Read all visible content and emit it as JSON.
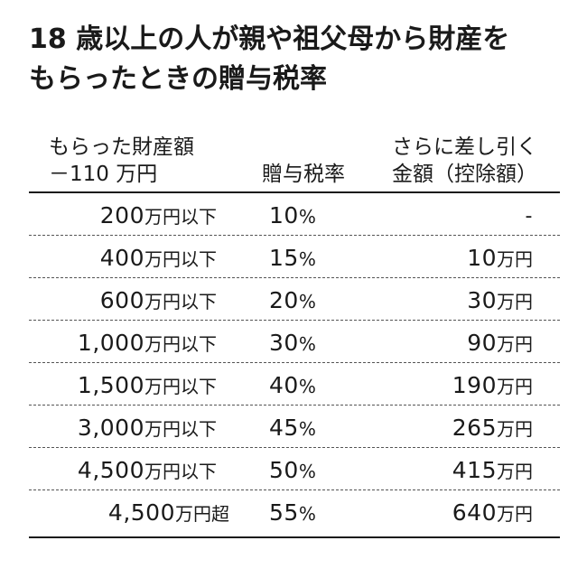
{
  "title": {
    "line1": "18 歳以上の人が親や祖父母から財産を",
    "line2": "もらったときの贈与税率"
  },
  "headers": {
    "amount_line1": "もらった財産額",
    "amount_line2": "－110 万円",
    "rate": "贈与税率",
    "deduction_line1": "さらに差し引く",
    "deduction_line2": "金額（控除額）"
  },
  "rows": [
    {
      "amount": "200",
      "amount_unit": "万円以下",
      "rate": "10",
      "rate_unit": "%",
      "deduction": "-",
      "deduction_unit": ""
    },
    {
      "amount": "400",
      "amount_unit": "万円以下",
      "rate": "15",
      "rate_unit": "%",
      "deduction": "10",
      "deduction_unit": "万円"
    },
    {
      "amount": "600",
      "amount_unit": "万円以下",
      "rate": "20",
      "rate_unit": "%",
      "deduction": "30",
      "deduction_unit": "万円"
    },
    {
      "amount": "1,000",
      "amount_unit": "万円以下",
      "rate": "30",
      "rate_unit": "%",
      "deduction": "90",
      "deduction_unit": "万円"
    },
    {
      "amount": "1,500",
      "amount_unit": "万円以下",
      "rate": "40",
      "rate_unit": "%",
      "deduction": "190",
      "deduction_unit": "万円"
    },
    {
      "amount": "3,000",
      "amount_unit": "万円以下",
      "rate": "45",
      "rate_unit": "%",
      "deduction": "265",
      "deduction_unit": "万円"
    },
    {
      "amount": "4,500",
      "amount_unit": "万円以下",
      "rate": "50",
      "rate_unit": "%",
      "deduction": "415",
      "deduction_unit": "万円"
    },
    {
      "amount": "4,500",
      "amount_unit": "万円超",
      "rate": "55",
      "rate_unit": "%",
      "deduction": "640",
      "deduction_unit": "万円"
    }
  ]
}
